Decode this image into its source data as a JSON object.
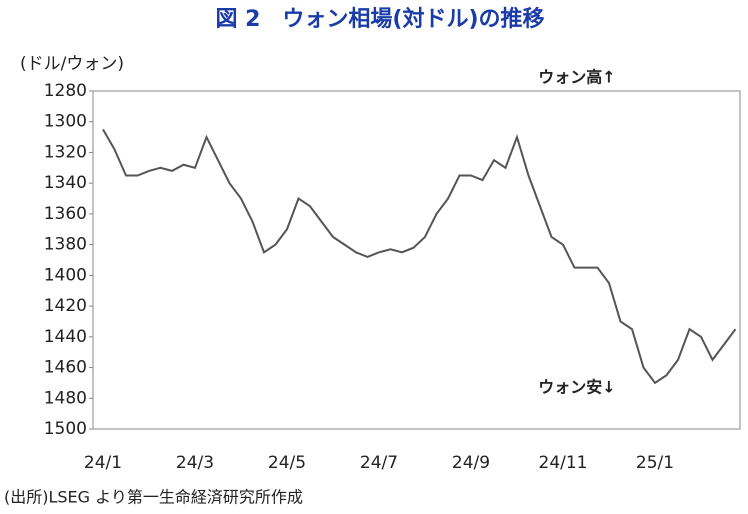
{
  "chart_data": {
    "type": "line",
    "title": "図 2　ウォン相場(対ドル)の推移",
    "y_label": "(ドル/ウォン)",
    "annotations": [
      "ウォン高↑",
      "ウォン安↓"
    ],
    "source": "(出所)LSEG より第一生命経済研究所作成",
    "categories": [
      "24/1",
      null,
      null,
      null,
      null,
      null,
      null,
      null,
      "24/3",
      null,
      null,
      null,
      null,
      null,
      null,
      null,
      "24/5",
      null,
      null,
      null,
      null,
      null,
      null,
      null,
      "24/7",
      null,
      null,
      null,
      null,
      null,
      null,
      null,
      "24/9",
      null,
      null,
      null,
      null,
      null,
      null,
      null,
      "24/11",
      null,
      null,
      null,
      null,
      null,
      null,
      null,
      "25/1",
      null,
      null,
      null,
      null,
      null,
      null,
      null
    ],
    "series": [
      {
        "name": "ウォン相場",
        "color": "#555555",
        "values": [
          1305,
          1318,
          1335,
          1335,
          1332,
          1330,
          1332,
          1328,
          1330,
          1310,
          1325,
          1340,
          1350,
          1365,
          1385,
          1380,
          1370,
          1350,
          1355,
          1365,
          1375,
          1380,
          1385,
          1388,
          1385,
          1383,
          1385,
          1382,
          1375,
          1360,
          1350,
          1335,
          1335,
          1338,
          1325,
          1330,
          1310,
          1335,
          1355,
          1375,
          1380,
          1395,
          1395,
          1395,
          1405,
          1430,
          1435,
          1460,
          1470,
          1465,
          1455,
          1435,
          1440,
          1455,
          1445,
          1435
        ]
      }
    ],
    "ylim": [
      1280,
      1500
    ],
    "y_inverted": true,
    "yticks": [
      1280,
      1300,
      1320,
      1340,
      1360,
      1380,
      1400,
      1420,
      1440,
      1460,
      1480,
      1500
    ],
    "grid": false
  }
}
